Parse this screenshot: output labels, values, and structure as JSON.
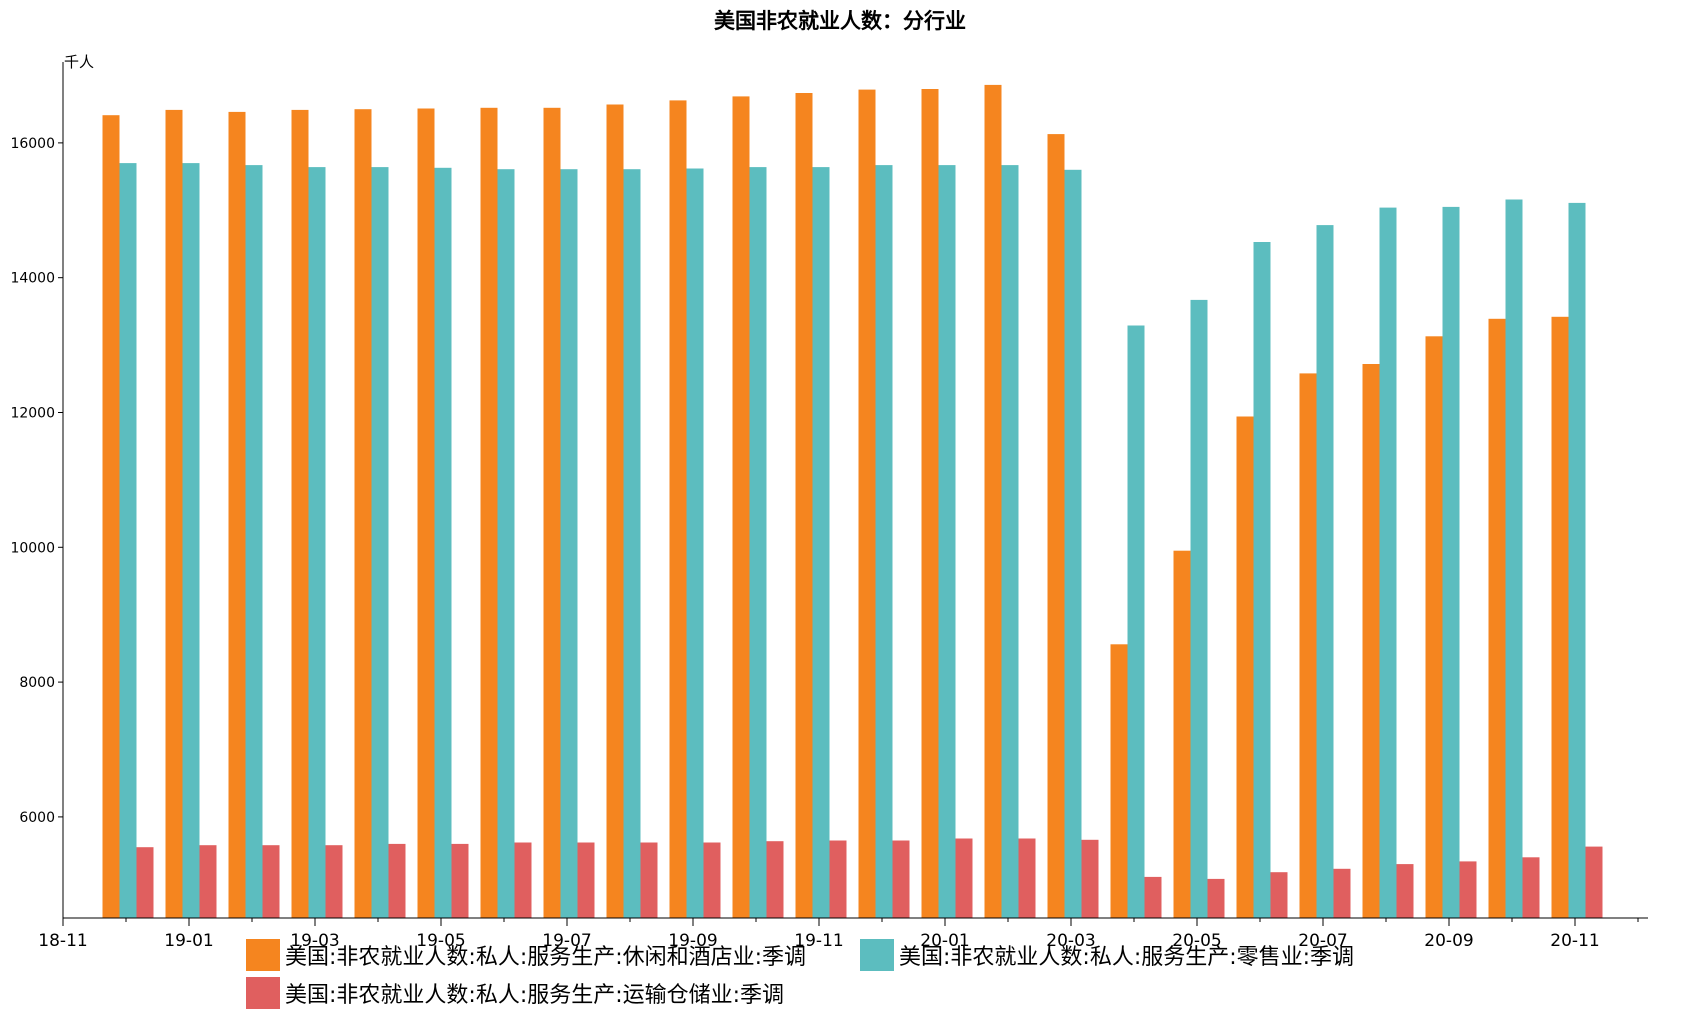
{
  "chart_data": {
    "type": "bar",
    "title": "美国非农就业人数：分行业",
    "ylabel": "千人",
    "xlabel": "",
    "ylim": [
      4500,
      17200
    ],
    "yticks": [
      6000,
      8000,
      10000,
      12000,
      14000,
      16000
    ],
    "categories": [
      "18-12",
      "19-01",
      "19-02",
      "19-03",
      "19-04",
      "19-05",
      "19-06",
      "19-07",
      "19-08",
      "19-09",
      "19-10",
      "19-11",
      "19-12",
      "20-01",
      "20-02",
      "20-03",
      "20-04",
      "20-05",
      "20-06",
      "20-07",
      "20-08",
      "20-09",
      "20-10",
      "20-11"
    ],
    "x_tick_labels": [
      "18-11",
      "19-01",
      "19-03",
      "19-05",
      "19-07",
      "19-09",
      "19-11",
      "20-01",
      "20-03",
      "20-05",
      "20-07",
      "20-09",
      "20-11"
    ],
    "grid": false,
    "legend_position": "bottom",
    "series": [
      {
        "name": "美国:非农就业人数:私人:服务生产:休闲和酒店业:季调",
        "color": "#f5851f",
        "values": [
          16410,
          16490,
          16460,
          16490,
          16500,
          16510,
          16520,
          16520,
          16570,
          16630,
          16690,
          16740,
          16790,
          16800,
          16860,
          16130,
          8560,
          9950,
          11940,
          12580,
          12720,
          13130,
          13390,
          13420
        ]
      },
      {
        "name": "美国:非农就业人数:私人:服务生产:零售业:季调",
        "color": "#5cbdbf",
        "values": [
          15700,
          15700,
          15670,
          15640,
          15640,
          15630,
          15610,
          15610,
          15610,
          15620,
          15640,
          15640,
          15670,
          15670,
          15670,
          15600,
          13290,
          13670,
          14530,
          14780,
          15040,
          15050,
          15160,
          15110
        ]
      },
      {
        "name": "美国:非农就业人数:私人:服务生产:运输仓储业:季调",
        "color": "#e05f5f",
        "values": [
          5550,
          5580,
          5580,
          5580,
          5600,
          5600,
          5620,
          5620,
          5620,
          5620,
          5640,
          5650,
          5650,
          5680,
          5680,
          5660,
          5110,
          5080,
          5180,
          5230,
          5300,
          5340,
          5400,
          5560
        ]
      }
    ]
  }
}
